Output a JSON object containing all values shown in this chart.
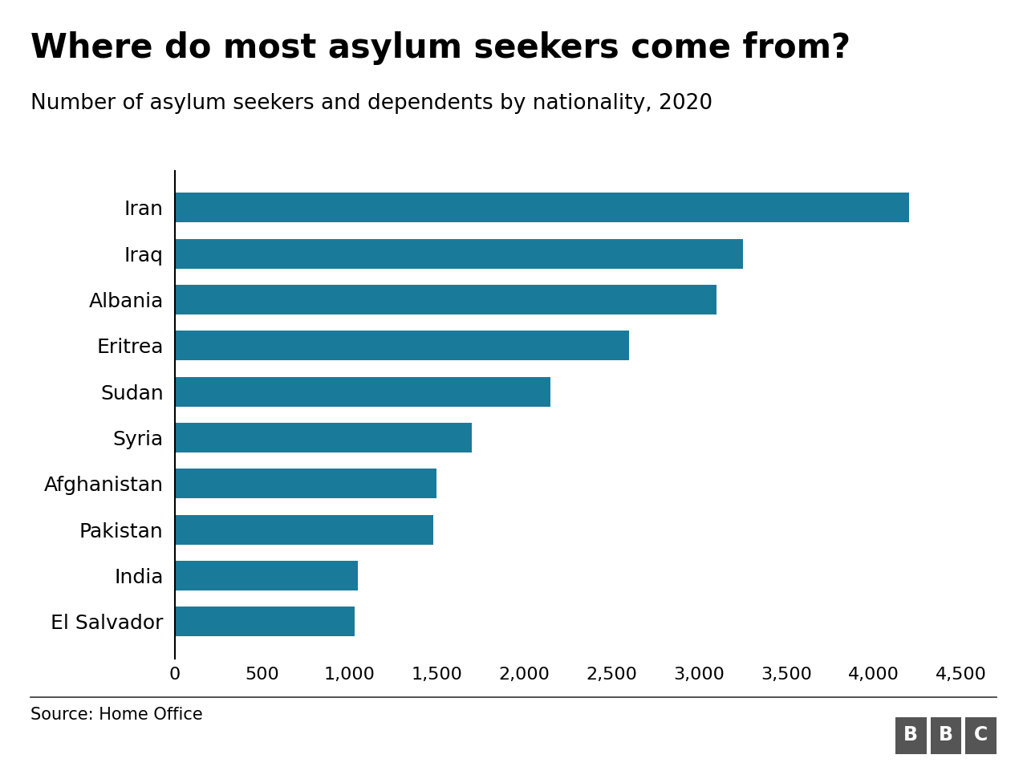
{
  "title": "Where do most asylum seekers come from?",
  "subtitle": "Number of asylum seekers and dependents by nationality, 2020",
  "source": "Source: Home Office",
  "categories": [
    "Iran",
    "Iraq",
    "Albania",
    "Eritrea",
    "Sudan",
    "Syria",
    "Afghanistan",
    "Pakistan",
    "India",
    "El Salvador"
  ],
  "values": [
    4200,
    3250,
    3100,
    2600,
    2150,
    1700,
    1500,
    1480,
    1050,
    1030
  ],
  "bar_color": "#1a7a9a",
  "background_color": "#ffffff",
  "xlim": [
    0,
    4700
  ],
  "xticks": [
    0,
    500,
    1000,
    1500,
    2000,
    2500,
    3000,
    3500,
    4000,
    4500
  ],
  "title_fontsize": 30,
  "subtitle_fontsize": 19,
  "tick_fontsize": 16,
  "label_fontsize": 18,
  "source_fontsize": 15,
  "bbc_fontsize": 17,
  "bbc_color": "#555555"
}
